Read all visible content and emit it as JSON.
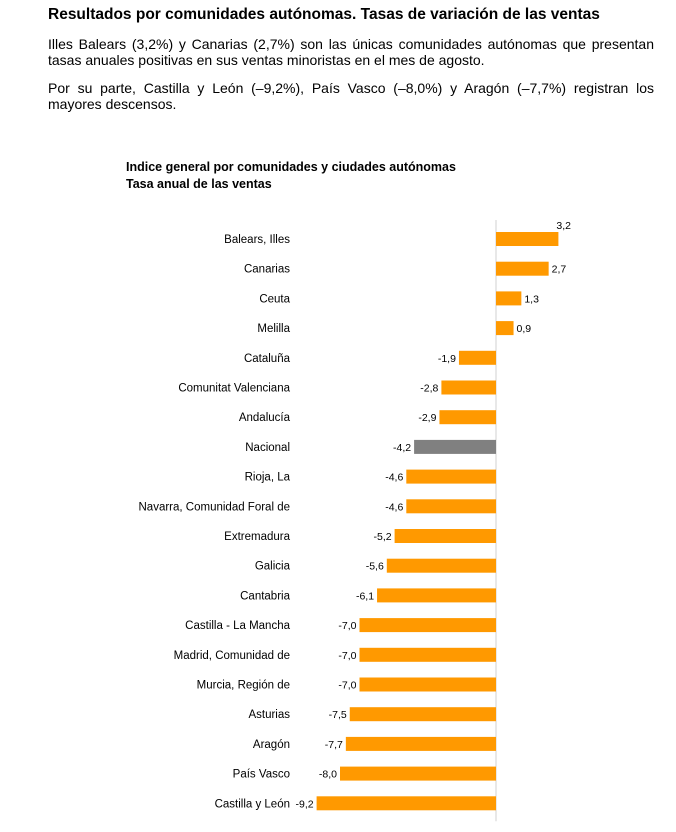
{
  "section": {
    "heading": "Resultados por comunidades autónomas. Tasas de variación de las ventas",
    "paragraphs": [
      "Illes Balears (3,2%) y Canarias (2,7%) son las únicas comunidades autónomas que presentan tasas anuales positivas en sus ventas minoristas en el mes de agosto.",
      "Por su parte, Castilla y León (–9,2%), País Vasco (–8,0%) y Aragón (–7,7%) registran los mayores descensos."
    ]
  },
  "colors": {
    "regions": "#ff9900",
    "national": "#808080"
  },
  "chart_data": {
    "type": "bar",
    "orientation": "horizontal",
    "title": "Indice general por comunidades y ciudades autónomas",
    "subtitle": "Tasa anual de las ventas",
    "xlim": [
      -9.2,
      3.2
    ],
    "grid": false,
    "categories": [
      "Balears, Illes",
      "Canarias",
      "Ceuta",
      "Melilla",
      "Cataluña",
      "Comunitat Valenciana",
      "Andalucía",
      "Nacional",
      "Rioja, La",
      "Navarra, Comunidad Foral de",
      "Extremadura",
      "Galicia",
      "Cantabria",
      "Castilla - La Mancha",
      "Madrid, Comunidad de",
      "Murcia, Región de",
      "Asturias",
      "Aragón",
      "País Vasco",
      "Castilla y León"
    ],
    "values": [
      3.2,
      2.7,
      1.3,
      0.9,
      -1.9,
      -2.8,
      -2.9,
      -4.2,
      -4.6,
      -4.6,
      -5.2,
      -5.6,
      -6.1,
      -7.0,
      -7.0,
      -7.0,
      -7.5,
      -7.7,
      -8.0,
      -9.2
    ],
    "value_labels": [
      "3,2",
      "2,7",
      "1,3",
      "0,9",
      "-1,9",
      "-2,8",
      "-2,9",
      "-4,2",
      "-4,6",
      "-4,6",
      "-5,2",
      "-5,6",
      "-6,1",
      "-7,0",
      "-7,0",
      "-7,0",
      "-7,5",
      "-7,7",
      "-8,0",
      "-9,2"
    ],
    "highlight": "Nacional"
  }
}
